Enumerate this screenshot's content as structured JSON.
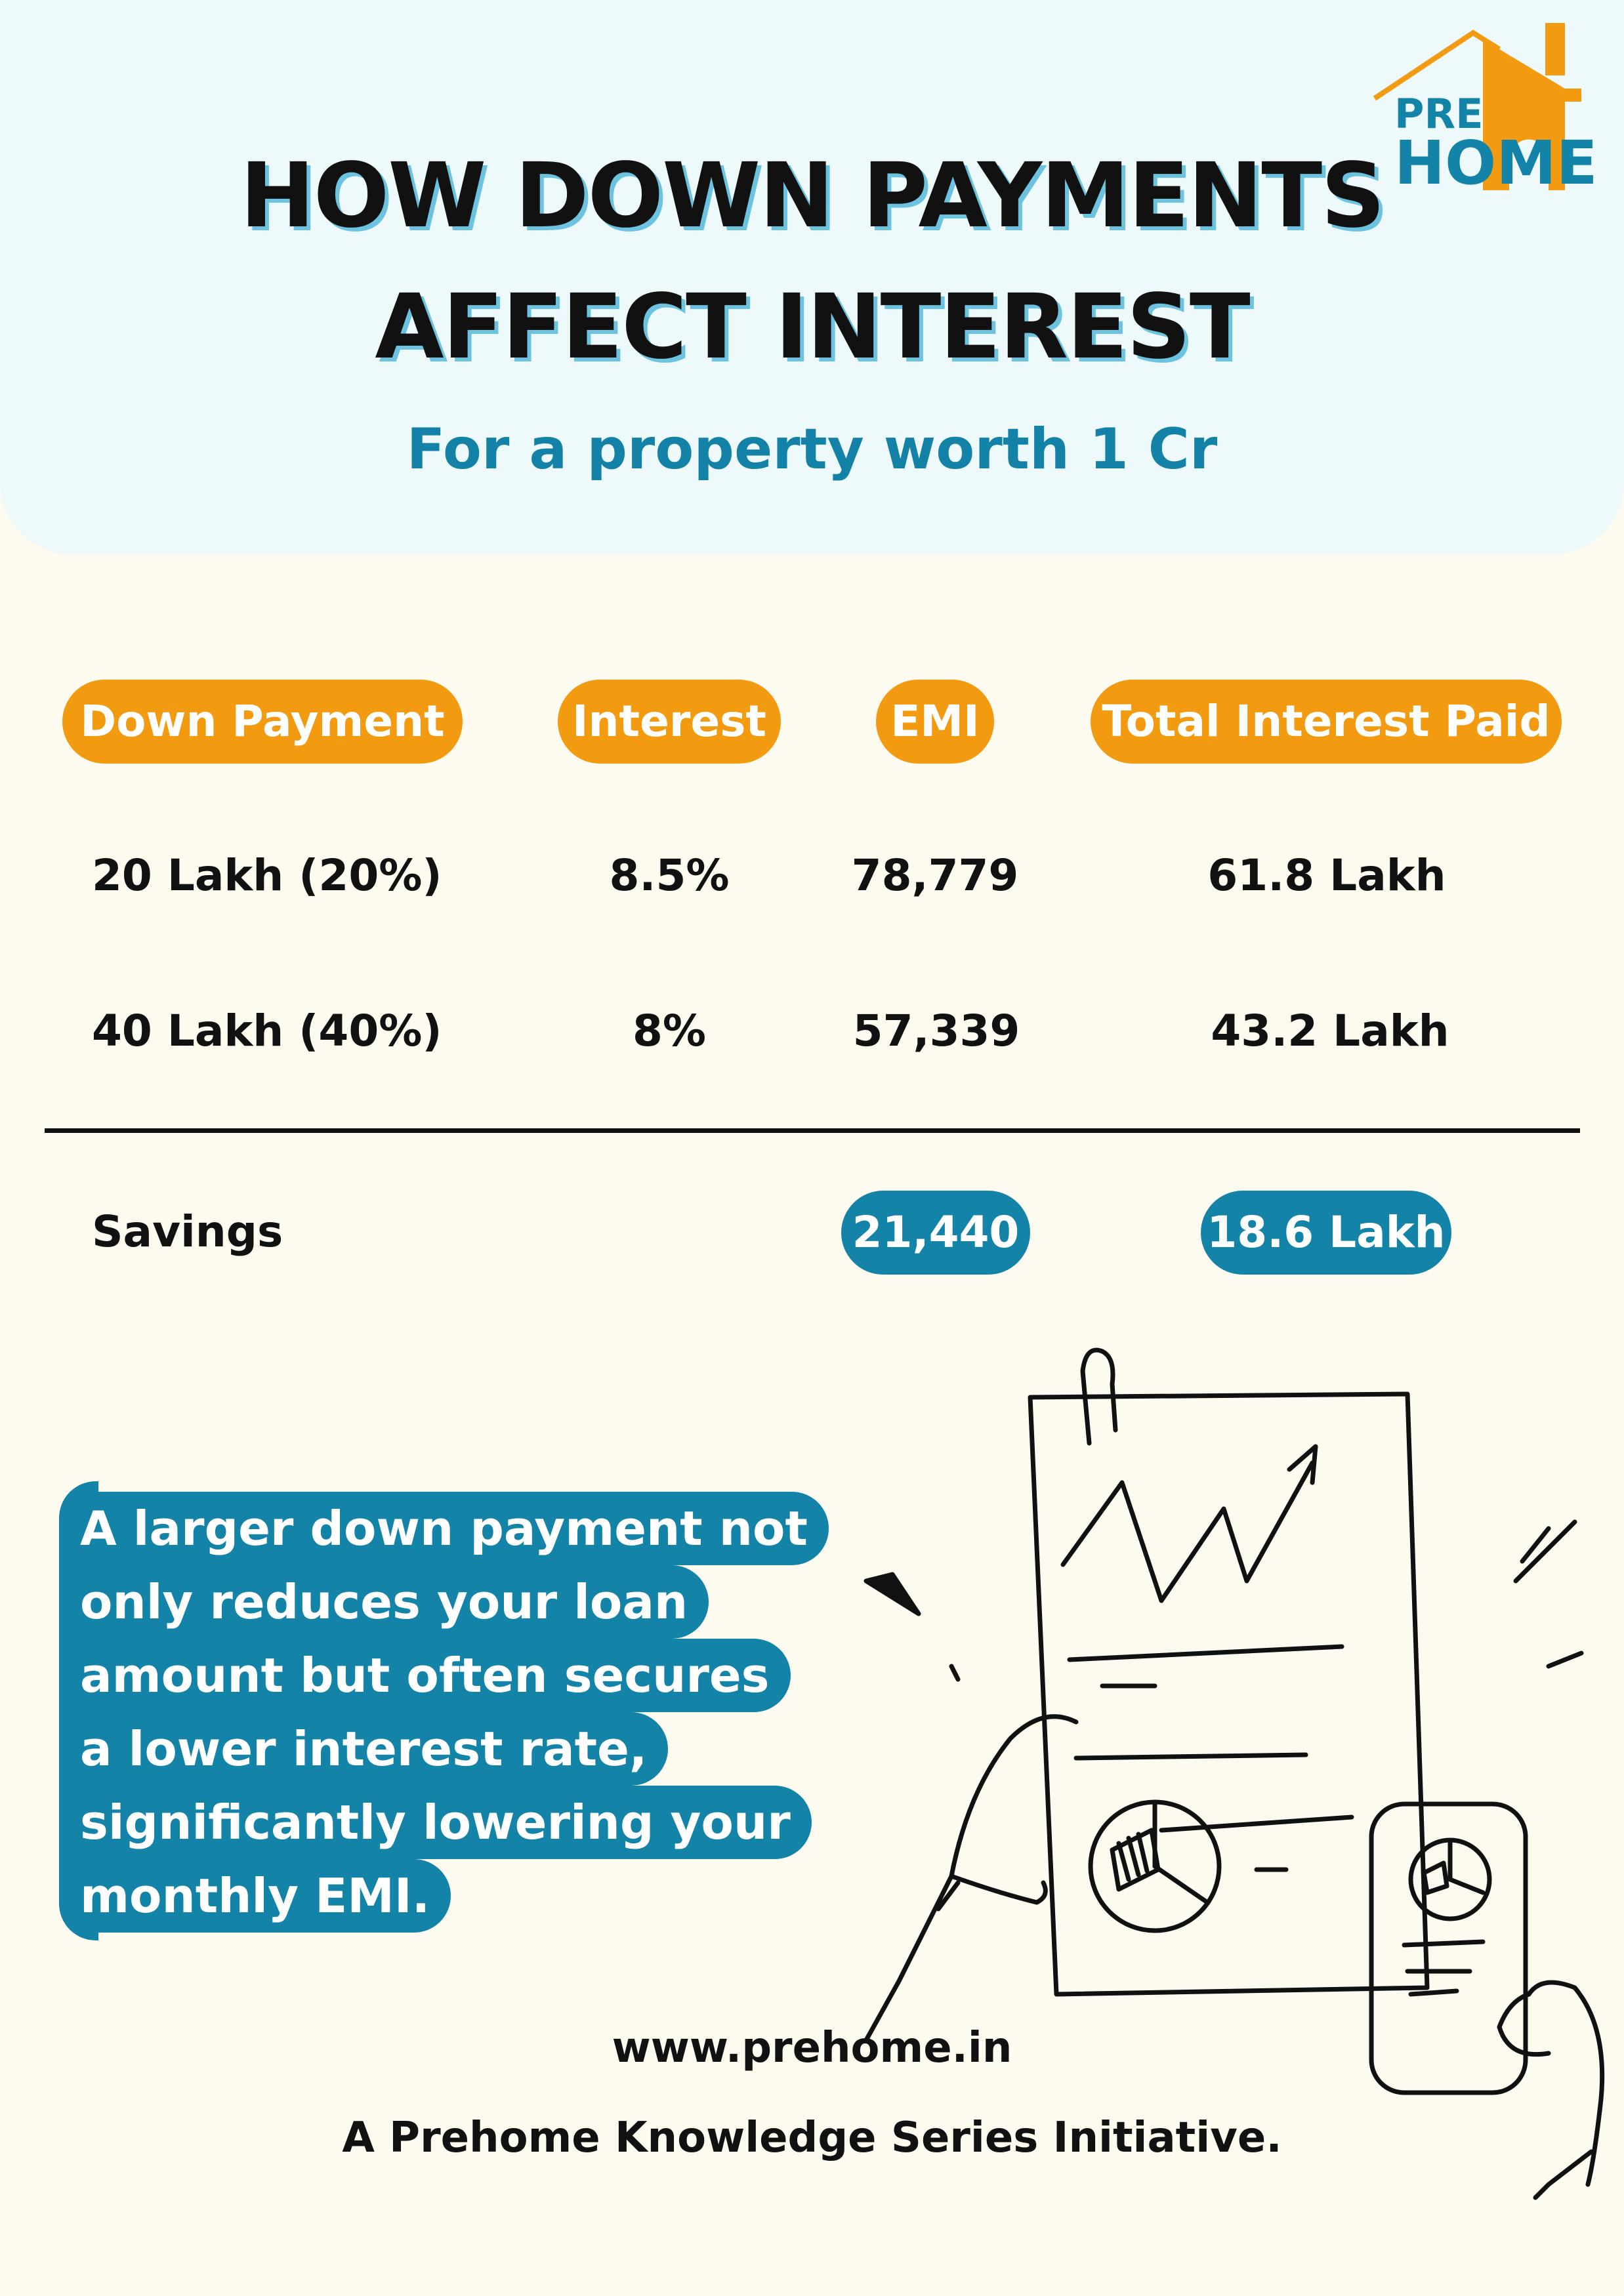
{
  "header": {
    "title_line1": "HOW DOWN PAYMENTS",
    "title_line2": "AFFECT INTEREST",
    "subtitle": "For a property worth 1 Cr"
  },
  "logo": {
    "top": "PRE",
    "bottom": "HOME",
    "color_orange": "#f29b11",
    "color_blue": "#1483a8"
  },
  "table": {
    "headers": [
      "Down Payment",
      "Interest",
      "EMI",
      "Total Interest Paid"
    ],
    "rows": [
      [
        "20 Lakh (20%)",
        "8.5%",
        "78,779",
        "61.8 Lakh"
      ],
      [
        "40 Lakh (40%)",
        "8%",
        "57,339",
        "43.2 Lakh"
      ]
    ],
    "savings_label": "Savings",
    "savings_emi": "21,440",
    "savings_interest": "18.6 Lakh"
  },
  "bubble": {
    "lines": [
      "A larger down payment not",
      "only reduces your loan",
      "amount but often secures",
      "a lower interest rate,",
      "significantly lowering your",
      "monthly EMI."
    ]
  },
  "footer": {
    "url": "www.prehome.in",
    "tagline": "A Prehome Knowledge Series Initiative."
  },
  "colors": {
    "header_bg": "#eef9fb",
    "page_bg": "#fdfaf0",
    "accent_orange": "#f29b11",
    "accent_blue": "#1483a8"
  }
}
